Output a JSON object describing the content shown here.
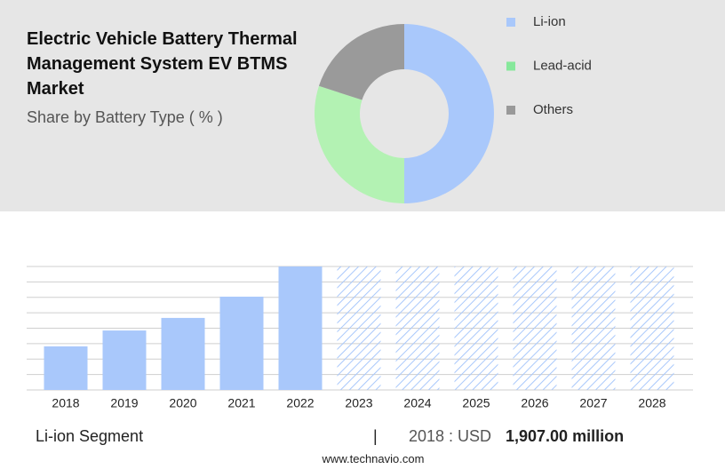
{
  "chart_data": [
    {
      "type": "donut",
      "title": "Electric Vehicle Battery Thermal Management System EV BTMS Market",
      "subtitle": "Share by Battery Type ( % )",
      "categories": [
        "Li-ion",
        "Lead-acid",
        "Others"
      ],
      "values": [
        50,
        30,
        20
      ],
      "colors": [
        "#a9c8fb",
        "#b3f2b3",
        "#9a9a9a"
      ],
      "legend_colors": [
        "#a9c8fb",
        "#86e89b",
        "#999999"
      ]
    },
    {
      "type": "bar",
      "categories": [
        "2018",
        "2019",
        "2020",
        "2021",
        "2022",
        "2023",
        "2024",
        "2025",
        "2026",
        "2027",
        "2028"
      ],
      "values": [
        1907,
        2600,
        3150,
        4080,
        5400,
        null,
        null,
        null,
        null,
        null,
        null
      ],
      "color": "#a9c8fb",
      "ylim": [
        0,
        5400
      ],
      "grid": true,
      "segment": "Li-ion Segment",
      "separator": "|",
      "highlight_label": "2018 : USD",
      "highlight_value": "1,907.00 million",
      "source": "www.technavio.com"
    }
  ]
}
